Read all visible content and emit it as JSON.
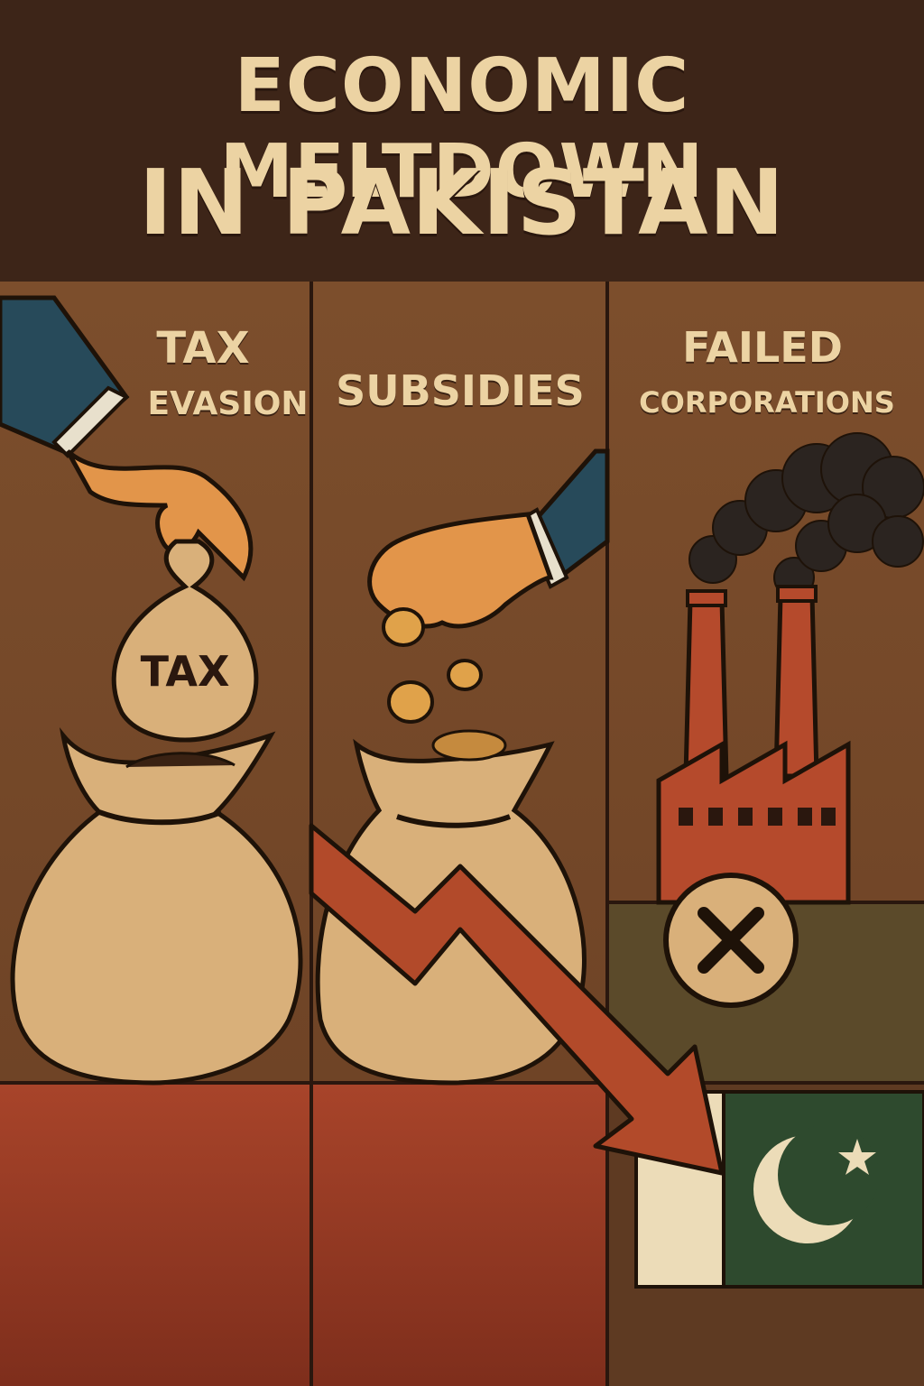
{
  "poster": {
    "title_line1": "ECONOMIC MELTDOWN",
    "title_line2": "IN PAKISTAN"
  },
  "panels": [
    {
      "label_line1": "TAX",
      "label_line2": "EVASION",
      "bag_text": "TAX"
    },
    {
      "label_line1": "SUBSIDIES"
    },
    {
      "label_line1": "FAILED",
      "label_line2": "CORPORATIONS"
    }
  ],
  "colors": {
    "title_band": "#3d2518",
    "title_text": "#ecd3a3",
    "panel_bg": "#7a4d2c",
    "bag": "#d9b07a",
    "arrow": "#b24a2a",
    "factory": "#b54a2c",
    "flag_green": "#2e4a2e",
    "flag_white": "#ecdcb8",
    "sleeve": "#274a5a"
  },
  "icons": [
    "hand-icon",
    "money-bag-icon",
    "coin-icon",
    "factory-icon",
    "smoke-icon",
    "x-circle-icon",
    "downward-arrow-icon",
    "pakistan-flag-icon"
  ]
}
